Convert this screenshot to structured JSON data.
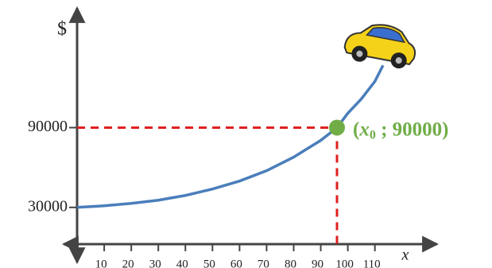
{
  "chart_data": {
    "type": "line",
    "y_label": "$",
    "x_label": "x",
    "x": [
      0,
      10,
      20,
      30,
      40,
      50,
      60,
      70,
      80,
      90,
      96,
      100,
      105,
      110,
      113
    ],
    "series": [
      {
        "color": "#4a7ebb",
        "values": [
          30000,
          31200,
          33000,
          35400,
          39000,
          43800,
          49800,
          57600,
          67800,
          80400,
          90000,
          100800,
          111600,
          124800,
          136800
        ]
      }
    ],
    "xlim": [
      -5,
      133
    ],
    "ylim": [
      -11400,
      180000
    ],
    "xticks": [
      10,
      20,
      30,
      40,
      50,
      60,
      70,
      80,
      90,
      100,
      110
    ],
    "yticks": [
      30000,
      90000
    ],
    "point": {
      "x": 96,
      "y": 90000,
      "color": "#70ad47",
      "guide_color": "#e02020",
      "label": {
        "open": "(",
        "var": "x",
        "sub": "0",
        "rest": " ; 90000)"
      }
    }
  }
}
